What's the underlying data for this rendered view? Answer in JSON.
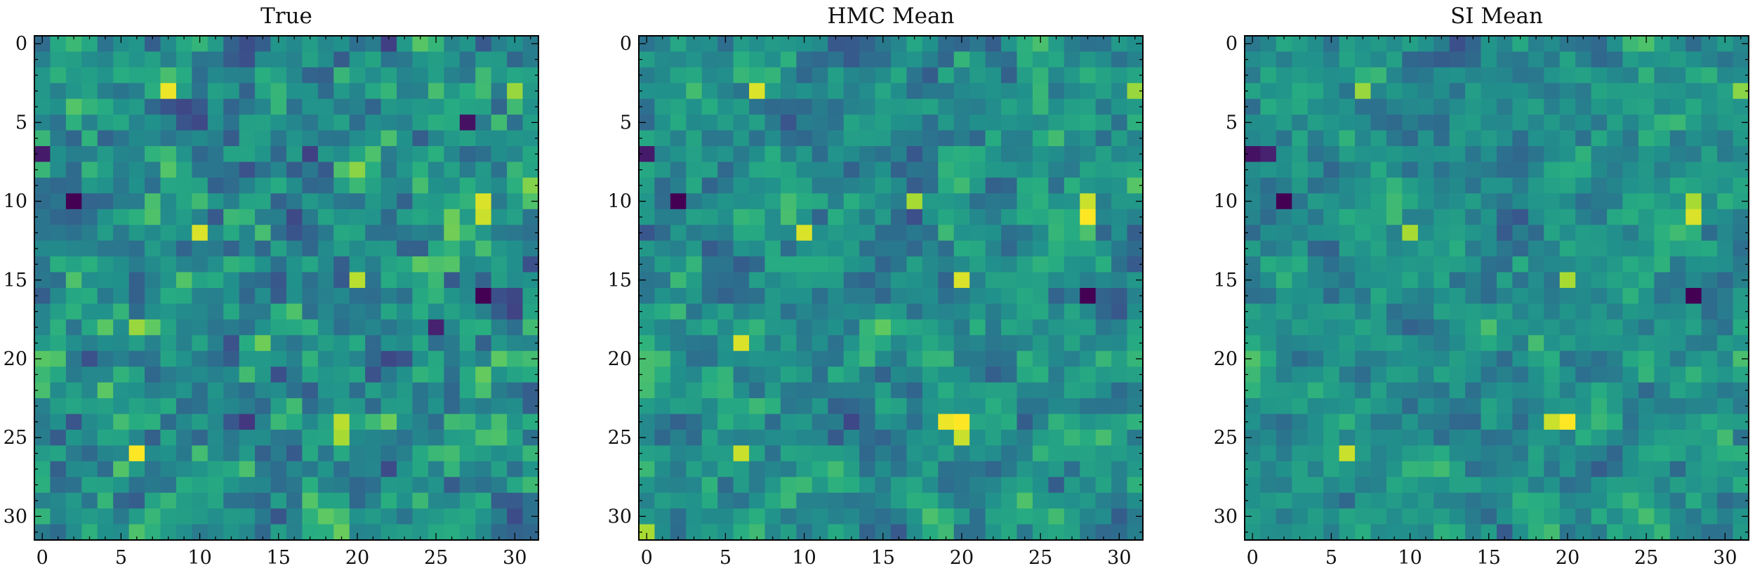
{
  "chart_data": {
    "type": "heatmap",
    "grid_size": 32,
    "colormap": "viridis",
    "x_ticks": [
      0,
      5,
      10,
      15,
      20,
      25,
      30
    ],
    "y_ticks": [
      0,
      5,
      10,
      15,
      20,
      25,
      30
    ],
    "value_range": [
      -1,
      1
    ],
    "panels": [
      {
        "title": "True",
        "seed": 7,
        "features": [
          {
            "x": 8,
            "y": 3,
            "v": 0.95
          },
          {
            "x": 28,
            "y": 10,
            "v": 0.9
          },
          {
            "x": 28,
            "y": 11,
            "v": 0.85
          },
          {
            "x": 10,
            "y": 12,
            "v": 0.9
          },
          {
            "x": 6,
            "y": 26,
            "v": 1.0
          },
          {
            "x": 20,
            "y": 15,
            "v": 0.8
          },
          {
            "x": 19,
            "y": 24,
            "v": 0.8
          },
          {
            "x": 19,
            "y": 25,
            "v": 0.75
          },
          {
            "x": 2,
            "y": 10,
            "v": -1.0
          },
          {
            "x": 28,
            "y": 16,
            "v": -1.0
          },
          {
            "x": 0,
            "y": 7,
            "v": -0.85
          },
          {
            "x": 27,
            "y": 5,
            "v": -0.9
          },
          {
            "x": 25,
            "y": 18,
            "v": -0.8
          },
          {
            "x": 6,
            "y": 18,
            "v": 0.7
          },
          {
            "x": 30,
            "y": 3,
            "v": 0.7
          }
        ]
      },
      {
        "title": "HMC Mean",
        "seed": 21,
        "features": [
          {
            "x": 7,
            "y": 3,
            "v": 0.9
          },
          {
            "x": 28,
            "y": 11,
            "v": 1.0
          },
          {
            "x": 28,
            "y": 10,
            "v": 0.85
          },
          {
            "x": 10,
            "y": 12,
            "v": 0.9
          },
          {
            "x": 20,
            "y": 24,
            "v": 1.0
          },
          {
            "x": 19,
            "y": 24,
            "v": 0.95
          },
          {
            "x": 20,
            "y": 25,
            "v": 0.85
          },
          {
            "x": 20,
            "y": 15,
            "v": 0.9
          },
          {
            "x": 6,
            "y": 19,
            "v": 0.9
          },
          {
            "x": 2,
            "y": 10,
            "v": -1.0
          },
          {
            "x": 28,
            "y": 16,
            "v": -1.0
          },
          {
            "x": 0,
            "y": 7,
            "v": -0.85
          },
          {
            "x": 6,
            "y": 26,
            "v": 0.85
          },
          {
            "x": 17,
            "y": 10,
            "v": 0.75
          },
          {
            "x": 31,
            "y": 3,
            "v": 0.7
          },
          {
            "x": 0,
            "y": 31,
            "v": 0.75
          }
        ]
      },
      {
        "title": "SI Mean",
        "seed": 33,
        "features": [
          {
            "x": 20,
            "y": 24,
            "v": 1.0
          },
          {
            "x": 19,
            "y": 24,
            "v": 0.85
          },
          {
            "x": 28,
            "y": 11,
            "v": 0.9
          },
          {
            "x": 28,
            "y": 10,
            "v": 0.75
          },
          {
            "x": 10,
            "y": 12,
            "v": 0.75
          },
          {
            "x": 6,
            "y": 26,
            "v": 0.85
          },
          {
            "x": 20,
            "y": 15,
            "v": 0.75
          },
          {
            "x": 2,
            "y": 10,
            "v": -1.0
          },
          {
            "x": 28,
            "y": 16,
            "v": -1.0
          },
          {
            "x": 0,
            "y": 7,
            "v": -0.9
          },
          {
            "x": 1,
            "y": 7,
            "v": -0.8
          },
          {
            "x": 7,
            "y": 3,
            "v": 0.7
          },
          {
            "x": 31,
            "y": 3,
            "v": 0.65
          }
        ]
      }
    ]
  }
}
